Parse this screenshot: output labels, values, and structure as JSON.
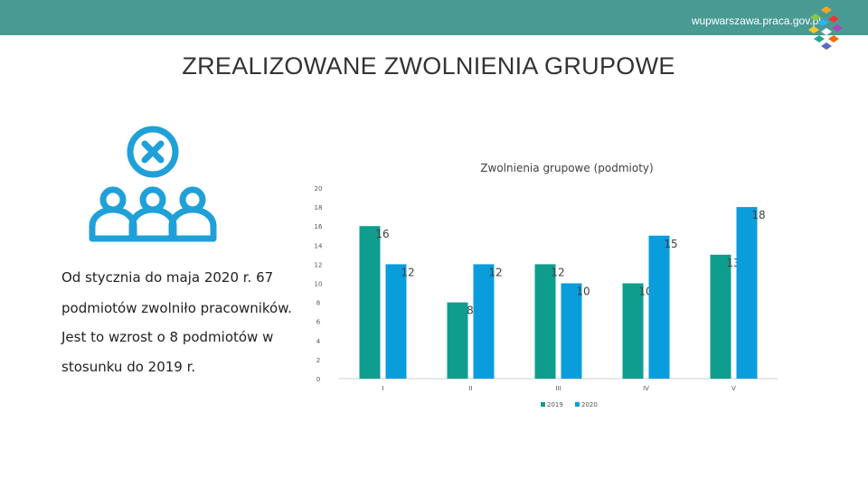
{
  "header": {
    "url": "wupwarszawa.praca.gov.pl",
    "logo_icon": "colorful-cubes-logo-icon",
    "bar_color": "#4a9a94"
  },
  "slide": {
    "title": "ZREALIZOWANE ZWOLNIENIA GRUPOWE",
    "icon": "people-with-cross-icon",
    "icon_color": "#1fa0d8"
  },
  "statement": {
    "lines": [
      "Od stycznia do maja 2020 r. 67",
      "podmiotów zwolniło pracowników.",
      "Jest to wzrost o 8 podmiotów w",
      "stosunku do 2019 r."
    ]
  },
  "chart_data": {
    "type": "bar",
    "title": "Zwolnienia grupowe (podmioty)",
    "categories": [
      "I",
      "II",
      "III",
      "IV",
      "V"
    ],
    "series": [
      {
        "name": "2019",
        "values": [
          16,
          8,
          12,
          10,
          13
        ],
        "color": "#0f9d8d"
      },
      {
        "name": "2020",
        "values": [
          12,
          12,
          10,
          15,
          18
        ],
        "color": "#0a9ddc"
      }
    ],
    "ylim": [
      0,
      20
    ],
    "yticks": [
      0,
      2,
      4,
      6,
      8,
      10,
      12,
      14,
      16,
      18,
      20
    ],
    "grid": false,
    "legend": "bottom",
    "data_labels": true
  }
}
